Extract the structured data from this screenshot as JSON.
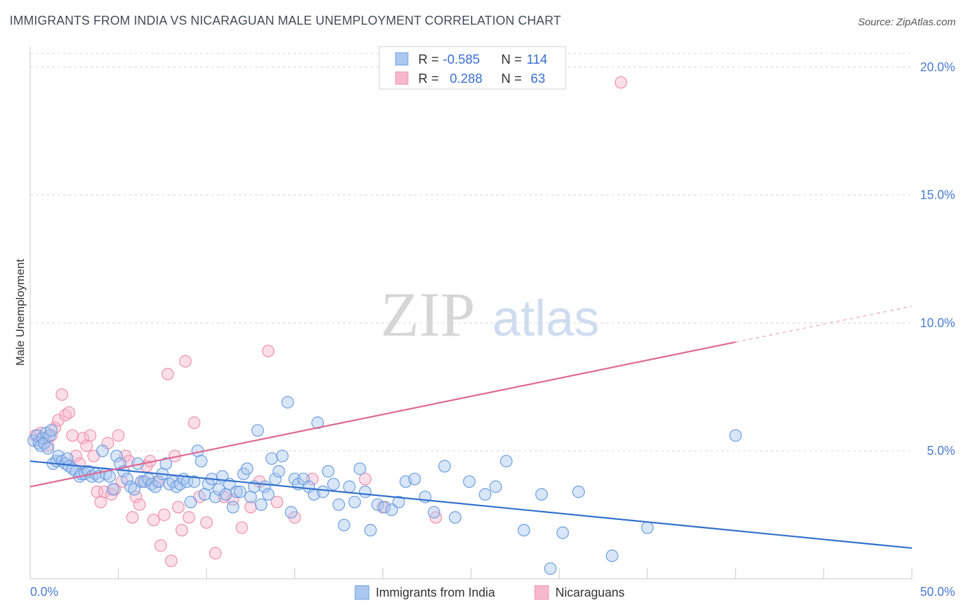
{
  "title": "IMMIGRANTS FROM INDIA VS NICARAGUAN MALE UNEMPLOYMENT CORRELATION CHART",
  "source": "Source: ZipAtlas.com",
  "watermark": {
    "zip": "ZIP",
    "atlas": "atlas"
  },
  "colors": {
    "india_fill": "#aac8f0",
    "india_stroke": "#6a9ee0",
    "india_line": "#2f6fcc",
    "nic_fill": "#f6b8cc",
    "nic_stroke": "#ee8fae",
    "nic_line": "#e06690",
    "grid": "#d8d8d8",
    "tick_label": "#4a7bd0"
  },
  "legend": {
    "rows": [
      {
        "r_label": "R =",
        "r_value": "-0.585",
        "n_label": "N =",
        "n_value": "114"
      },
      {
        "r_label": "R =",
        "r_value": "0.288",
        "n_label": "N =",
        "n_value": "63"
      }
    ]
  },
  "chart_data": {
    "type": "scatter",
    "title": "IMMIGRANTS FROM INDIA VS NICARAGUAN MALE UNEMPLOYMENT CORRELATION CHART",
    "xlabel": "",
    "ylabel": "Male Unemployment",
    "xlim": [
      0,
      50
    ],
    "ylim": [
      0,
      20.8
    ],
    "x_tick_labels": [
      "0.0%",
      "50.0%"
    ],
    "y_ticks": [
      5,
      10,
      15,
      20
    ],
    "y_tick_labels": [
      "5.0%",
      "10.0%",
      "15.0%",
      "20.0%"
    ],
    "grid": true,
    "legend_position": "bottom",
    "series": [
      {
        "name": "Immigrants from India",
        "r": -0.585,
        "n": 114,
        "trend": {
          "x0": 0,
          "y0": 4.6,
          "x1": 50,
          "y1": 1.2
        },
        "points": [
          [
            0.2,
            5.4
          ],
          [
            0.4,
            5.6
          ],
          [
            0.5,
            5.3
          ],
          [
            0.6,
            5.2
          ],
          [
            0.7,
            5.5
          ],
          [
            0.8,
            5.3
          ],
          [
            0.9,
            5.7
          ],
          [
            1.0,
            5.1
          ],
          [
            1.1,
            5.6
          ],
          [
            1.2,
            5.8
          ],
          [
            1.3,
            4.5
          ],
          [
            1.5,
            4.6
          ],
          [
            1.6,
            4.8
          ],
          [
            1.8,
            4.6
          ],
          [
            2.0,
            4.5
          ],
          [
            2.1,
            4.7
          ],
          [
            2.2,
            4.4
          ],
          [
            2.4,
            4.3
          ],
          [
            2.6,
            4.2
          ],
          [
            2.8,
            4.0
          ],
          [
            2.9,
            4.1
          ],
          [
            3.1,
            4.1
          ],
          [
            3.3,
            4.2
          ],
          [
            3.5,
            4.0
          ],
          [
            3.7,
            4.1
          ],
          [
            3.9,
            4.0
          ],
          [
            4.1,
            5.0
          ],
          [
            4.3,
            4.1
          ],
          [
            4.5,
            4.0
          ],
          [
            4.7,
            3.5
          ],
          [
            4.9,
            4.8
          ],
          [
            5.1,
            4.5
          ],
          [
            5.3,
            4.2
          ],
          [
            5.5,
            3.9
          ],
          [
            5.7,
            3.6
          ],
          [
            5.9,
            3.5
          ],
          [
            6.1,
            4.5
          ],
          [
            6.3,
            3.8
          ],
          [
            6.5,
            3.8
          ],
          [
            6.7,
            3.9
          ],
          [
            6.9,
            3.7
          ],
          [
            7.1,
            3.6
          ],
          [
            7.3,
            3.8
          ],
          [
            7.5,
            4.1
          ],
          [
            7.7,
            4.5
          ],
          [
            7.9,
            3.7
          ],
          [
            8.1,
            3.8
          ],
          [
            8.3,
            3.6
          ],
          [
            8.5,
            3.7
          ],
          [
            8.7,
            3.9
          ],
          [
            8.9,
            3.8
          ],
          [
            9.1,
            3.0
          ],
          [
            9.3,
            3.8
          ],
          [
            9.5,
            5.0
          ],
          [
            9.7,
            4.6
          ],
          [
            9.9,
            3.3
          ],
          [
            10.1,
            3.7
          ],
          [
            10.3,
            3.9
          ],
          [
            10.5,
            3.2
          ],
          [
            10.7,
            3.5
          ],
          [
            10.9,
            4.0
          ],
          [
            11.1,
            3.3
          ],
          [
            11.3,
            3.7
          ],
          [
            11.5,
            2.8
          ],
          [
            11.7,
            3.4
          ],
          [
            11.9,
            3.4
          ],
          [
            12.1,
            4.1
          ],
          [
            12.3,
            4.3
          ],
          [
            12.5,
            3.2
          ],
          [
            12.7,
            3.6
          ],
          [
            12.9,
            5.8
          ],
          [
            13.1,
            2.9
          ],
          [
            13.3,
            3.6
          ],
          [
            13.5,
            3.3
          ],
          [
            13.7,
            4.7
          ],
          [
            13.9,
            3.9
          ],
          [
            14.1,
            4.2
          ],
          [
            14.3,
            4.8
          ],
          [
            14.6,
            6.9
          ],
          [
            14.8,
            2.6
          ],
          [
            15.0,
            3.9
          ],
          [
            15.2,
            3.7
          ],
          [
            15.5,
            3.9
          ],
          [
            15.8,
            3.6
          ],
          [
            16.1,
            3.3
          ],
          [
            16.3,
            6.1
          ],
          [
            16.6,
            3.4
          ],
          [
            16.9,
            4.2
          ],
          [
            17.2,
            3.7
          ],
          [
            17.5,
            2.9
          ],
          [
            17.8,
            2.1
          ],
          [
            18.1,
            3.6
          ],
          [
            18.4,
            3.0
          ],
          [
            18.7,
            4.3
          ],
          [
            19.0,
            3.4
          ],
          [
            19.3,
            1.9
          ],
          [
            19.7,
            2.9
          ],
          [
            20.1,
            2.8
          ],
          [
            20.5,
            2.7
          ],
          [
            20.9,
            3.0
          ],
          [
            21.3,
            3.8
          ],
          [
            21.8,
            3.9
          ],
          [
            22.4,
            3.2
          ],
          [
            22.9,
            2.6
          ],
          [
            23.5,
            4.4
          ],
          [
            24.1,
            2.4
          ],
          [
            24.9,
            3.8
          ],
          [
            25.8,
            3.3
          ],
          [
            26.4,
            3.6
          ],
          [
            27.0,
            4.6
          ],
          [
            28.0,
            1.9
          ],
          [
            29.0,
            3.3
          ],
          [
            29.5,
            0.4
          ],
          [
            30.2,
            1.8
          ],
          [
            31.1,
            3.4
          ],
          [
            33.0,
            0.9
          ],
          [
            35.0,
            2.0
          ],
          [
            40.0,
            5.6
          ]
        ]
      },
      {
        "name": "Nicaraguans",
        "r": 0.288,
        "n": 63,
        "trend": {
          "x0": 0,
          "y0": 3.6,
          "x1": 40,
          "y1": 9.25,
          "x_dash_end": 50,
          "y_dash_end": 10.65
        },
        "points": [
          [
            0.3,
            5.6
          ],
          [
            0.5,
            5.4
          ],
          [
            0.6,
            5.7
          ],
          [
            0.8,
            5.3
          ],
          [
            0.9,
            5.5
          ],
          [
            1.0,
            5.2
          ],
          [
            1.2,
            5.6
          ],
          [
            1.4,
            5.9
          ],
          [
            1.6,
            6.2
          ],
          [
            1.8,
            7.2
          ],
          [
            2.0,
            6.4
          ],
          [
            2.2,
            6.5
          ],
          [
            2.4,
            5.6
          ],
          [
            2.6,
            4.8
          ],
          [
            2.8,
            4.5
          ],
          [
            3.0,
            5.5
          ],
          [
            3.2,
            5.2
          ],
          [
            3.4,
            5.6
          ],
          [
            3.6,
            4.8
          ],
          [
            3.8,
            3.4
          ],
          [
            4.0,
            3.0
          ],
          [
            4.2,
            3.4
          ],
          [
            4.4,
            5.3
          ],
          [
            4.6,
            3.3
          ],
          [
            4.8,
            3.5
          ],
          [
            5.0,
            5.6
          ],
          [
            5.2,
            3.8
          ],
          [
            5.4,
            4.8
          ],
          [
            5.6,
            4.6
          ],
          [
            5.8,
            2.4
          ],
          [
            6.0,
            3.2
          ],
          [
            6.2,
            2.9
          ],
          [
            6.4,
            3.8
          ],
          [
            6.6,
            4.4
          ],
          [
            6.8,
            4.6
          ],
          [
            7.0,
            2.3
          ],
          [
            7.2,
            3.8
          ],
          [
            7.4,
            1.3
          ],
          [
            7.6,
            2.5
          ],
          [
            7.8,
            8.0
          ],
          [
            8.0,
            0.7
          ],
          [
            8.2,
            4.8
          ],
          [
            8.4,
            2.8
          ],
          [
            8.6,
            1.9
          ],
          [
            8.8,
            8.5
          ],
          [
            9.0,
            2.4
          ],
          [
            9.3,
            6.1
          ],
          [
            9.6,
            3.2
          ],
          [
            10.0,
            2.2
          ],
          [
            10.5,
            1.0
          ],
          [
            11.0,
            3.2
          ],
          [
            11.5,
            3.1
          ],
          [
            12.0,
            2.0
          ],
          [
            12.5,
            2.8
          ],
          [
            13.0,
            3.8
          ],
          [
            13.5,
            8.9
          ],
          [
            14.0,
            3.0
          ],
          [
            15.0,
            2.4
          ],
          [
            16.0,
            3.9
          ],
          [
            19.0,
            3.9
          ],
          [
            20.0,
            2.8
          ],
          [
            23.0,
            2.4
          ],
          [
            33.5,
            19.4
          ]
        ]
      }
    ]
  }
}
